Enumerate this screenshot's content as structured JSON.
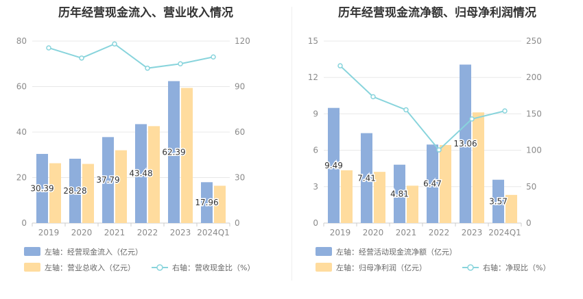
{
  "chart_data": [
    {
      "type": "bar",
      "title": "历年经营现金流入、营业收入情况",
      "categories": [
        "2019",
        "2020",
        "2021",
        "2022",
        "2023",
        "2024Q1"
      ],
      "left_axis": {
        "ticks": [
          "0",
          "20",
          "40",
          "60",
          "80"
        ],
        "ylim": [
          0,
          80
        ]
      },
      "right_axis": {
        "ticks": [
          "0",
          "30",
          "60",
          "90",
          "120"
        ],
        "ylim": [
          0,
          120
        ]
      },
      "series": [
        {
          "name": "左轴：经营现金流入（亿元）",
          "type": "bar",
          "axis": "left",
          "color": "#8eaedc",
          "values": [
            30.39,
            28.28,
            37.79,
            43.48,
            62.39,
            17.96
          ],
          "labels": [
            "30.39",
            "28.28",
            "37.79",
            "43.48",
            "62.39",
            "17.96"
          ]
        },
        {
          "name": "左轴：营业总收入（亿元）",
          "type": "bar",
          "axis": "left",
          "color": "#ffdc9e",
          "values": [
            26.3,
            26.0,
            32.0,
            42.6,
            59.4,
            16.4
          ]
        },
        {
          "name": "右轴：营收现金比（%）",
          "type": "line",
          "axis": "right",
          "color": "#88d4dc",
          "values": [
            115.5,
            108.8,
            118.1,
            102.1,
            105.0,
            109.5
          ]
        }
      ]
    },
    {
      "type": "bar",
      "title": "历年经营现金流净额、归母净利润情况",
      "categories": [
        "2019",
        "2020",
        "2021",
        "2022",
        "2023",
        "2024Q1"
      ],
      "left_axis": {
        "ticks": [
          "0",
          "3",
          "6",
          "9",
          "12",
          "15"
        ],
        "ylim": [
          0,
          15
        ]
      },
      "right_axis": {
        "ticks": [
          "0",
          "50",
          "100",
          "150",
          "200",
          "250"
        ],
        "ylim": [
          0,
          250
        ]
      },
      "series": [
        {
          "name": "左轴：经营活动现金流净额（亿元）",
          "type": "bar",
          "axis": "left",
          "color": "#8eaedc",
          "values": [
            9.49,
            7.41,
            4.81,
            6.47,
            13.06,
            3.57
          ],
          "labels": [
            "9.49",
            "7.41",
            "4.81",
            "6.47",
            "13.06",
            "3.57"
          ]
        },
        {
          "name": "左轴：归母净利润（亿元）",
          "type": "bar",
          "axis": "left",
          "color": "#ffdc9e",
          "values": [
            4.35,
            4.22,
            3.08,
            6.43,
            9.12,
            2.32
          ]
        },
        {
          "name": "右轴：净现比（%）",
          "type": "line",
          "axis": "right",
          "color": "#88d4dc",
          "values": [
            216,
            173.5,
            155.5,
            100.5,
            143,
            154
          ]
        }
      ]
    }
  ]
}
